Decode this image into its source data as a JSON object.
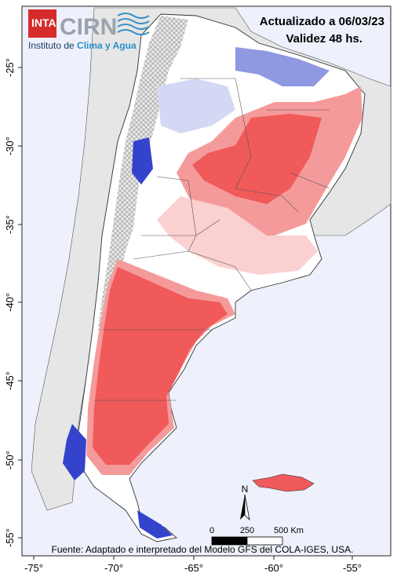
{
  "header": {
    "updated": "Actualizado a 06/03/23",
    "validity": "Validez 48 hs."
  },
  "logo": {
    "inta": "INTA",
    "cirn": "CIRN",
    "subtitle_prefix": "Instituto de ",
    "subtitle_highlight": "Clima y Agua"
  },
  "north_arrow": {
    "label": "N"
  },
  "scale_bar": {
    "labels": [
      "0",
      "250",
      "500 Km"
    ]
  },
  "source": "Fuente: Adaptado e interpretado del Modelo GFS del COLA-IGES, USA.",
  "axes": {
    "x_ticks": [
      "-75°",
      "-70°",
      "-65°",
      "-60°",
      "-55°"
    ],
    "y_ticks": [
      "-25°",
      "-30°",
      "-35°",
      "-40°",
      "-45°",
      "-50°",
      "-55°"
    ]
  },
  "colors": {
    "ocean": "#eef1fb",
    "land_outside": "#e6e6e6",
    "no_data_hatch": "#bfbfbf",
    "red_strong": "#f05a5a",
    "red_mid": "#f59a9a",
    "red_light": "#fbd0d0",
    "blue_strong": "#3343cc",
    "blue_mid": "#8f99e2",
    "blue_light": "#d4d8f4",
    "neutral": "#ffffff"
  }
}
